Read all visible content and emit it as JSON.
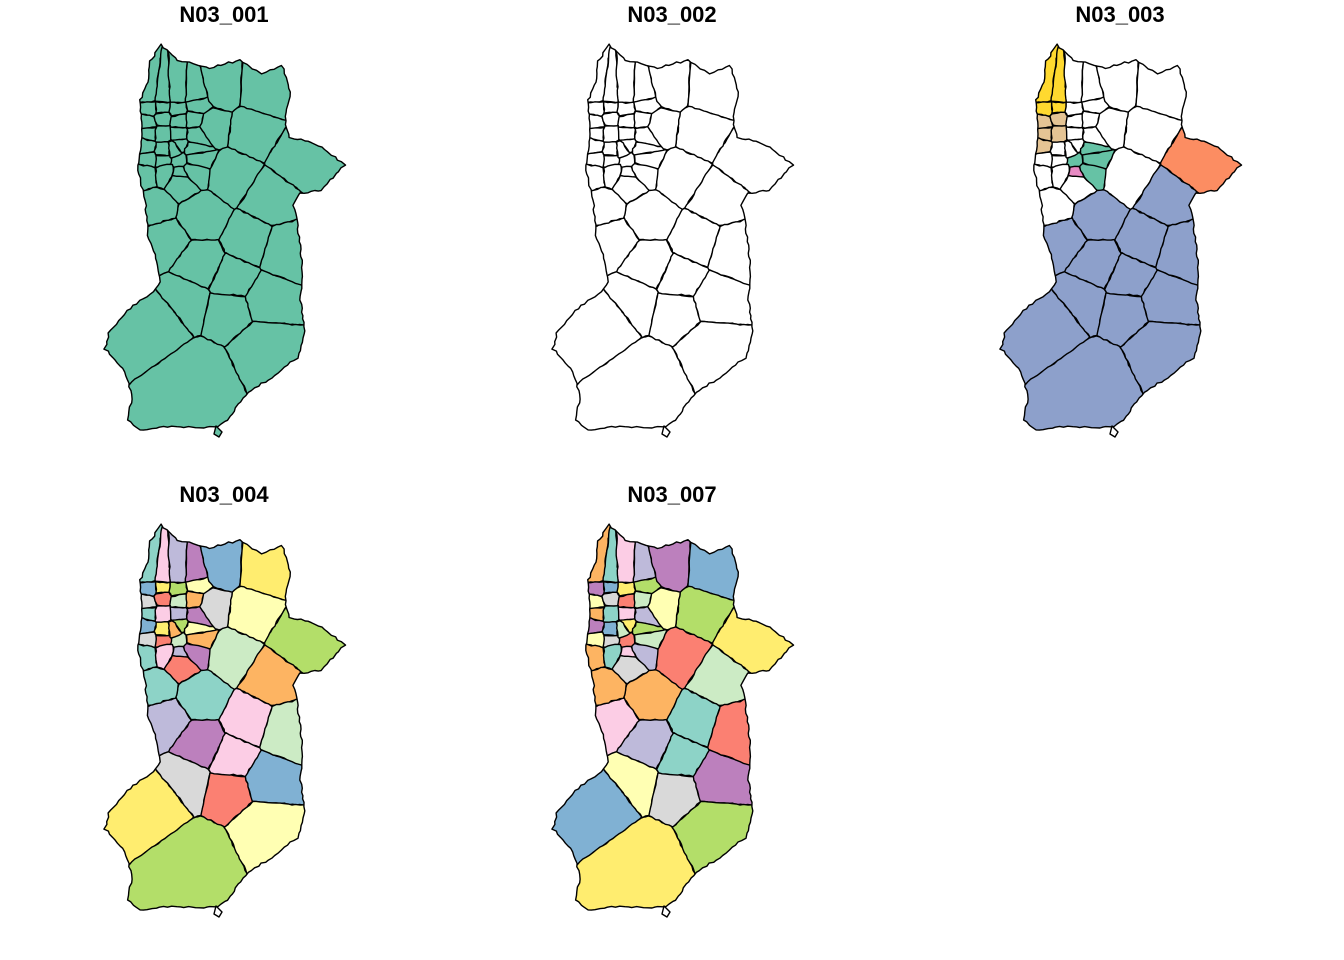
{
  "figure": {
    "panels": [
      {
        "title": "N03_001",
        "style": "uniform",
        "fill": "#66C2A5"
      },
      {
        "title": "N03_002",
        "style": "outline",
        "fill": "#FFFFFF"
      },
      {
        "title": "N03_003",
        "style": "grouped",
        "palette": [
          "#8DA0CB",
          "#FFFFFF",
          "#FC8D62",
          "#A6D854",
          "#FFD92F",
          "#E5C494",
          "#E78AC3",
          "#66C2A5"
        ]
      },
      {
        "title": "N03_004",
        "style": "multicolor",
        "palette": [
          "#8DD3C7",
          "#FFFFB3",
          "#BEBADA",
          "#FB8072",
          "#80B1D3",
          "#FDB462",
          "#B3DE69",
          "#FCCDE5",
          "#D9D9D9",
          "#BC80BD",
          "#CCEBC5",
          "#FFED6F"
        ]
      },
      {
        "title": "N03_007",
        "style": "multicolor",
        "palette": [
          "#8DD3C7",
          "#FFFFB3",
          "#BEBADA",
          "#FB8072",
          "#80B1D3",
          "#FDB462",
          "#B3DE69",
          "#FCCDE5",
          "#D9D9D9",
          "#BC80BD",
          "#CCEBC5",
          "#FFED6F"
        ]
      }
    ]
  }
}
